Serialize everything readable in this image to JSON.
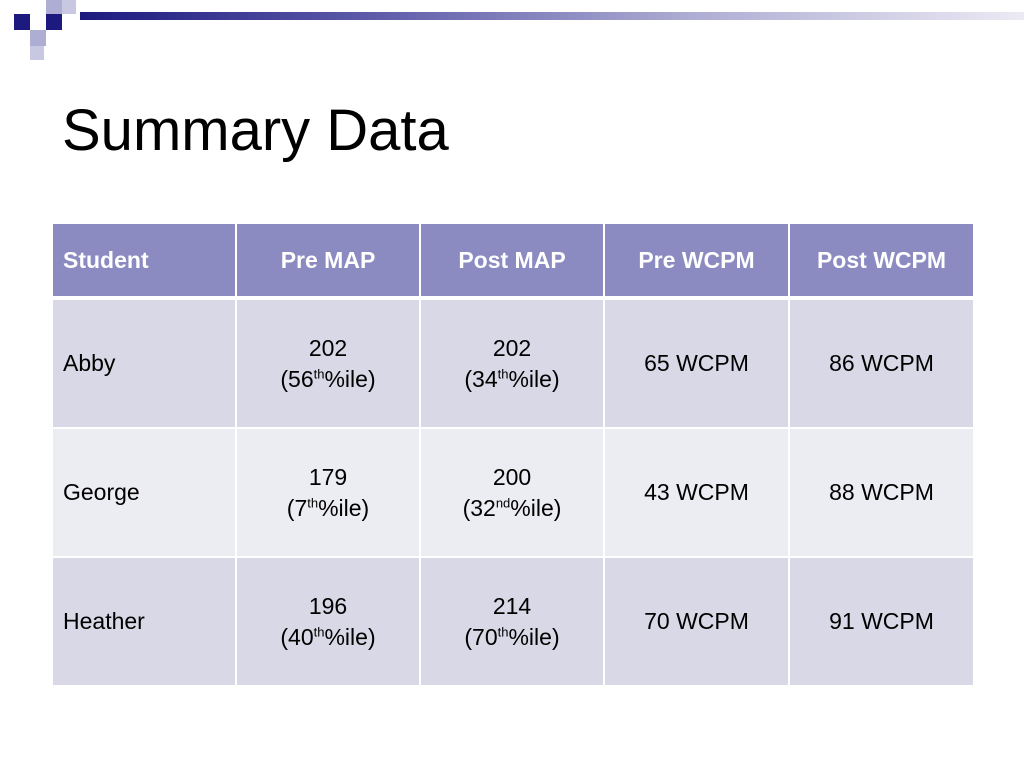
{
  "slide": {
    "title": "Summary Data"
  },
  "table": {
    "headers": [
      "Student",
      "Pre MAP",
      "Post MAP",
      "Pre WCPM",
      "Post WCPM"
    ],
    "rows": [
      {
        "student": "Abby",
        "pre_map": {
          "score": "202",
          "pct_open": "(56",
          "pct_suffix": "th",
          "pct_tail": "%ile)"
        },
        "post_map": {
          "score": "202",
          "pct_open": "(34",
          "pct_suffix": "th",
          "pct_tail": "%ile)"
        },
        "pre_wcpm": "65 WCPM",
        "post_wcpm": "86 WCPM"
      },
      {
        "student": "George",
        "pre_map": {
          "score": "179",
          "pct_open": "(7",
          "pct_suffix": "th",
          "pct_tail": "%ile)"
        },
        "post_map": {
          "score": "200",
          "pct_open": "(32",
          "pct_suffix": "nd",
          "pct_tail": "%ile)"
        },
        "pre_wcpm": "43 WCPM",
        "post_wcpm": "88 WCPM"
      },
      {
        "student": "Heather",
        "pre_map": {
          "score": "196",
          "pct_open": "(40",
          "pct_suffix": "th",
          "pct_tail": "%ile)"
        },
        "post_map": {
          "score": "214",
          "pct_open": "(70",
          "pct_suffix": "th",
          "pct_tail": "%ile)"
        },
        "pre_wcpm": "70 WCPM",
        "post_wcpm": "91 WCPM"
      }
    ]
  },
  "colors": {
    "header_bg": "#8b8bc2",
    "row_odd_bg": "#d8d8e6",
    "row_even_bg": "#ececf3",
    "accent_dark": "#1c1a7e",
    "accent_light": "#aeadd3"
  }
}
